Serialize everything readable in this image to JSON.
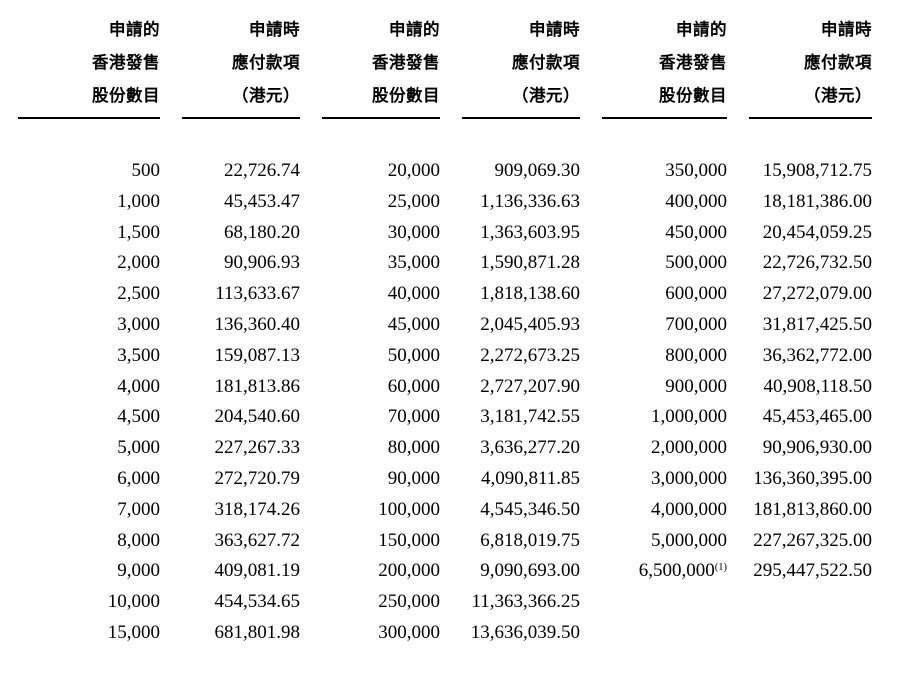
{
  "page": {
    "background_color": "#ffffff",
    "text_color": "#000000",
    "description": "Prospectus table of Hong Kong Offer Shares applied for and amounts payable on application"
  },
  "table": {
    "header": {
      "shares_lines": [
        "申請的",
        "香港發售",
        "股份數目"
      ],
      "amount_lines": [
        "申請時",
        "應付款項",
        "（港元）"
      ]
    },
    "footnote_marker": "(1)",
    "groups": [
      {
        "rows": [
          [
            "500",
            "22,726.74"
          ],
          [
            "1,000",
            "45,453.47"
          ],
          [
            "1,500",
            "68,180.20"
          ],
          [
            "2,000",
            "90,906.93"
          ],
          [
            "2,500",
            "113,633.67"
          ],
          [
            "3,000",
            "136,360.40"
          ],
          [
            "3,500",
            "159,087.13"
          ],
          [
            "4,000",
            "181,813.86"
          ],
          [
            "4,500",
            "204,540.60"
          ],
          [
            "5,000",
            "227,267.33"
          ],
          [
            "6,000",
            "272,720.79"
          ],
          [
            "7,000",
            "318,174.26"
          ],
          [
            "8,000",
            "363,627.72"
          ],
          [
            "9,000",
            "409,081.19"
          ],
          [
            "10,000",
            "454,534.65"
          ],
          [
            "15,000",
            "681,801.98"
          ]
        ]
      },
      {
        "rows": [
          [
            "20,000",
            "909,069.30"
          ],
          [
            "25,000",
            "1,136,336.63"
          ],
          [
            "30,000",
            "1,363,603.95"
          ],
          [
            "35,000",
            "1,590,871.28"
          ],
          [
            "40,000",
            "1,818,138.60"
          ],
          [
            "45,000",
            "2,045,405.93"
          ],
          [
            "50,000",
            "2,272,673.25"
          ],
          [
            "60,000",
            "2,727,207.90"
          ],
          [
            "70,000",
            "3,181,742.55"
          ],
          [
            "80,000",
            "3,636,277.20"
          ],
          [
            "90,000",
            "4,090,811.85"
          ],
          [
            "100,000",
            "4,545,346.50"
          ],
          [
            "150,000",
            "6,818,019.75"
          ],
          [
            "200,000",
            "9,090,693.00"
          ],
          [
            "250,000",
            "11,363,366.25"
          ],
          [
            "300,000",
            "13,636,039.50"
          ]
        ]
      },
      {
        "rows": [
          [
            "350,000",
            "15,908,712.75"
          ],
          [
            "400,000",
            "18,181,386.00"
          ],
          [
            "450,000",
            "20,454,059.25"
          ],
          [
            "500,000",
            "22,726,732.50"
          ],
          [
            "600,000",
            "27,272,079.00"
          ],
          [
            "700,000",
            "31,817,425.50"
          ],
          [
            "800,000",
            "36,362,772.00"
          ],
          [
            "900,000",
            "40,908,118.50"
          ],
          [
            "1,000,000",
            "45,453,465.00"
          ],
          [
            "2,000,000",
            "90,906,930.00"
          ],
          [
            "3,000,000",
            "136,360,395.00"
          ],
          [
            "4,000,000",
            "181,813,860.00"
          ],
          [
            "5,000,000",
            "227,267,325.00"
          ],
          [
            "6,500,000",
            "295,447,522.50",
            "(1)"
          ]
        ]
      }
    ]
  }
}
